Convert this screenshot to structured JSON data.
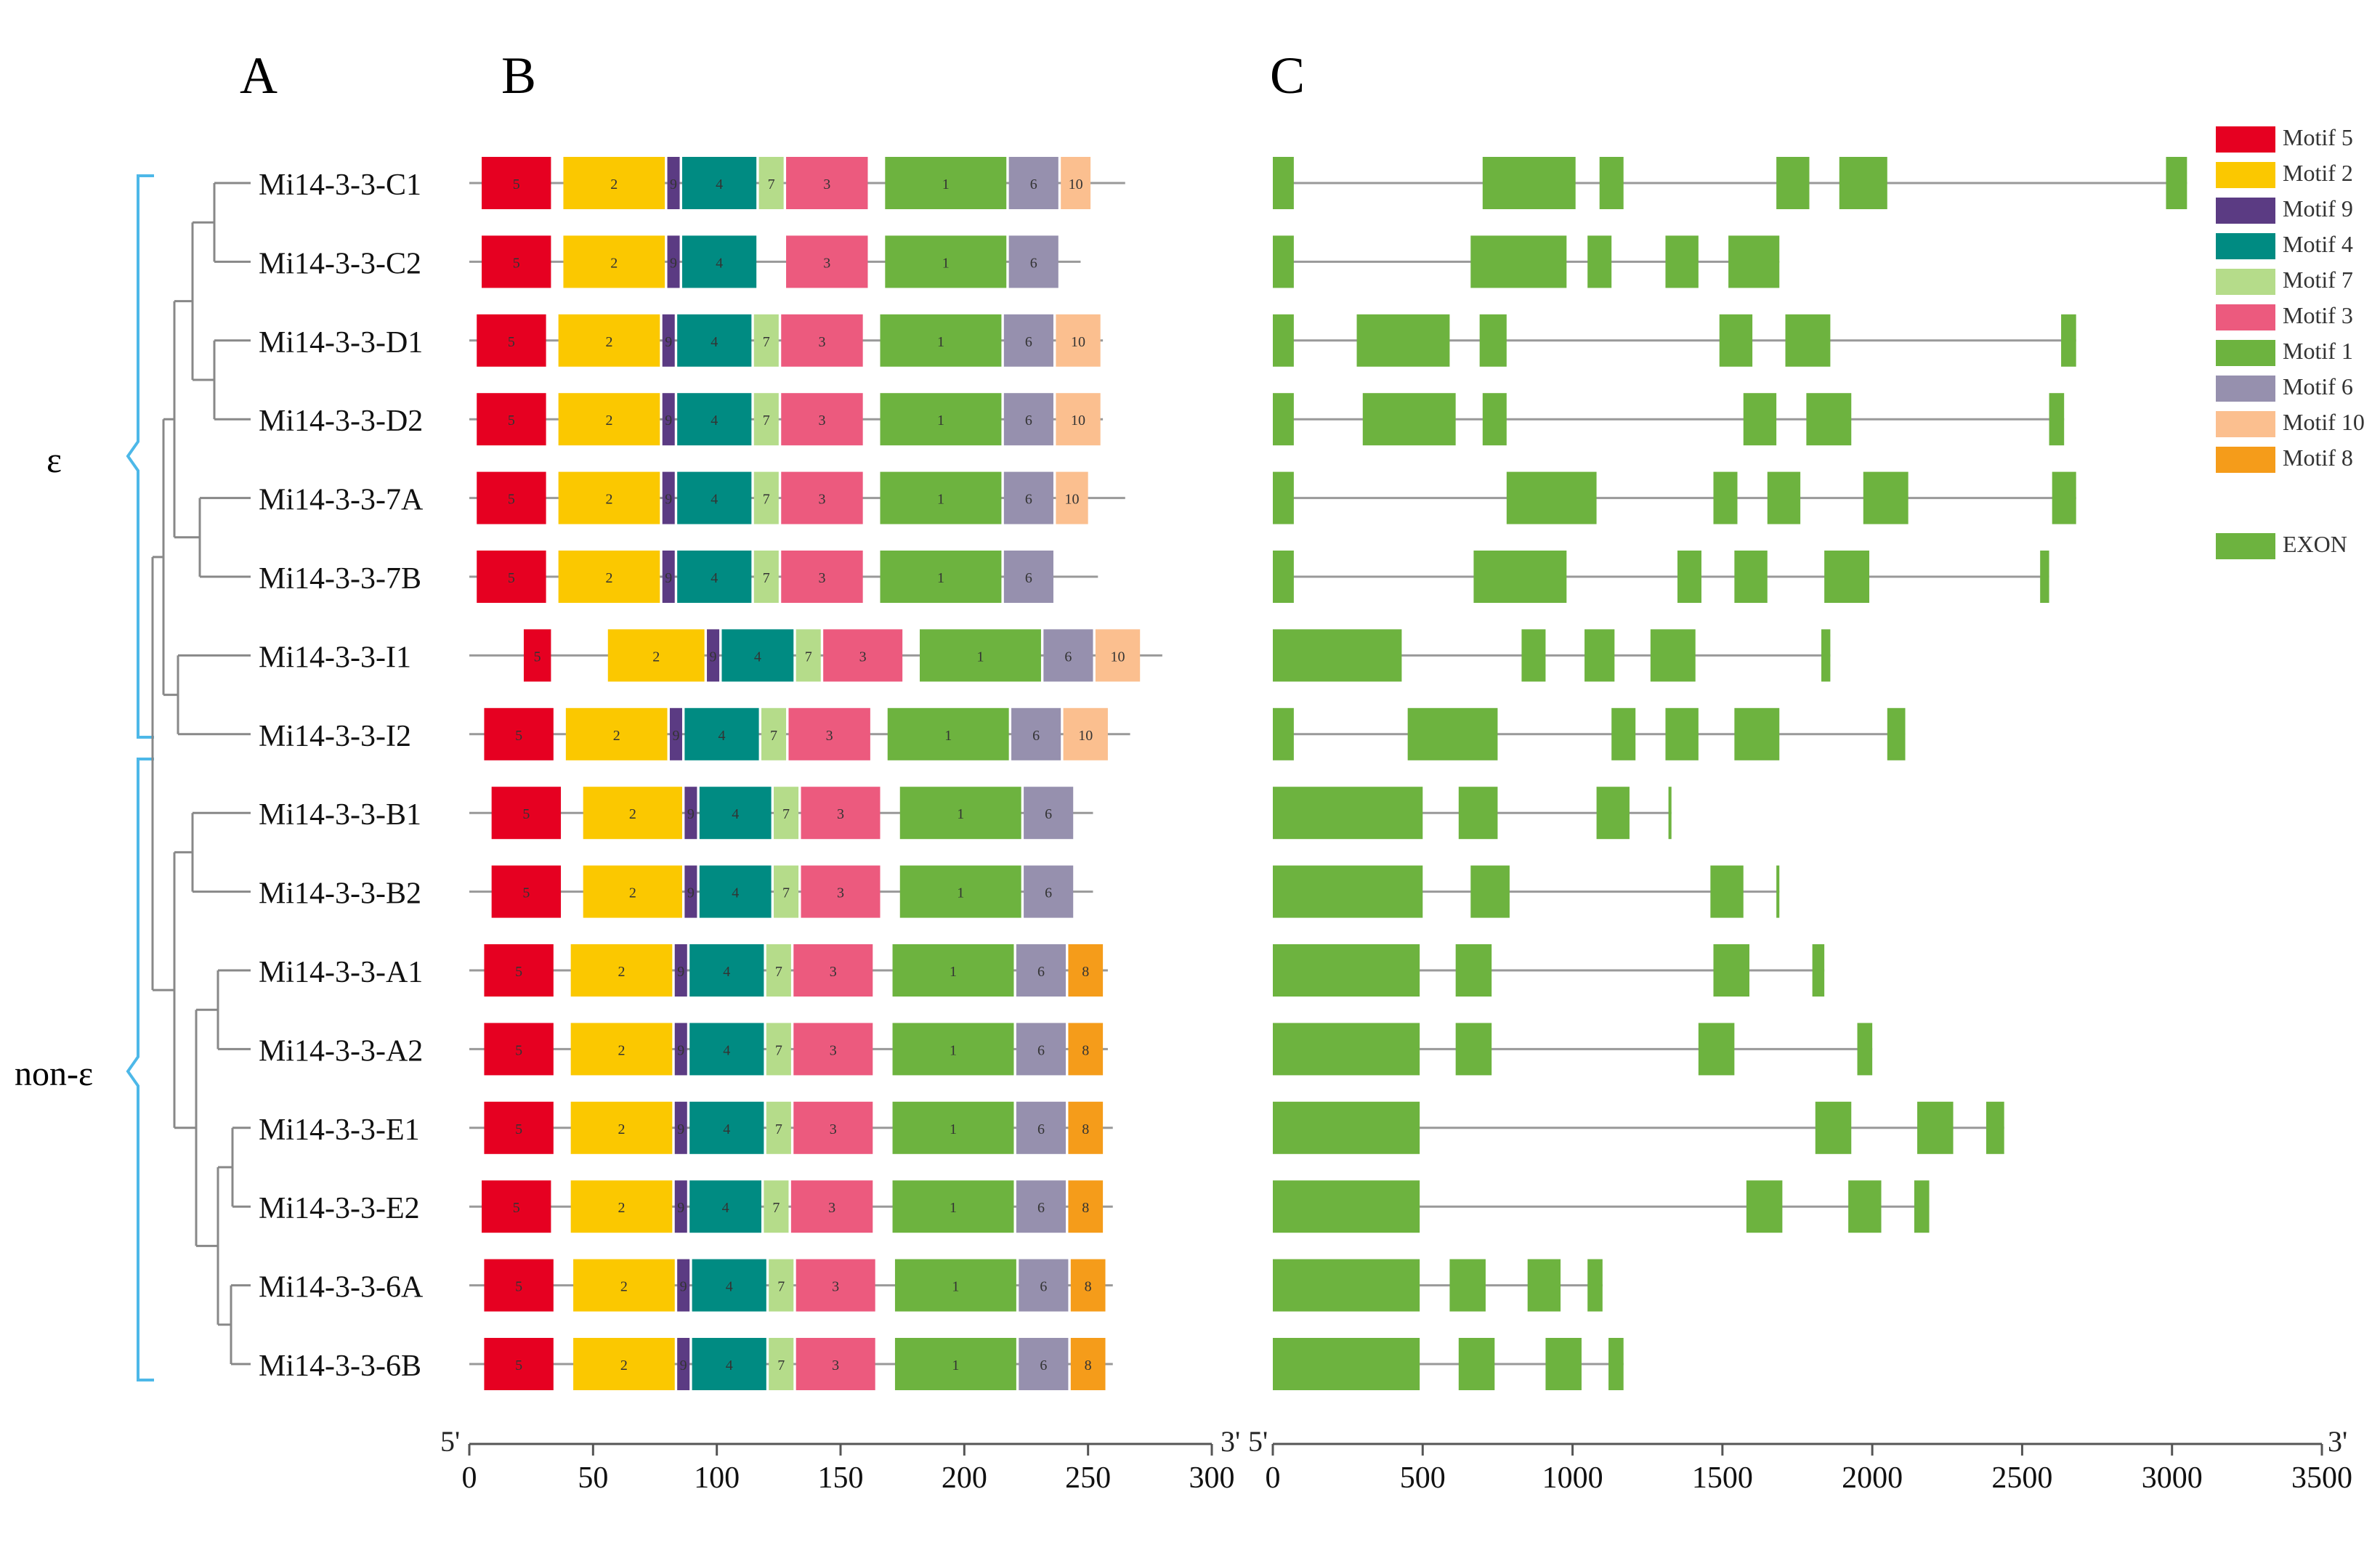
{
  "panels": {
    "a": "A",
    "b": "B",
    "c": "C"
  },
  "clades": {
    "epsilon": "ε",
    "non_epsilon": "non-ε"
  },
  "genes": [
    {
      "name": "Mi14-3-3-C1",
      "length": 265,
      "motifs": [
        [
          5,
          5,
          33
        ],
        [
          2,
          38,
          79
        ],
        [
          9,
          80,
          85
        ],
        [
          4,
          86,
          116
        ],
        [
          7,
          117,
          127
        ],
        [
          3,
          128,
          161
        ],
        [
          1,
          168,
          217
        ],
        [
          6,
          218,
          238
        ],
        [
          10,
          239,
          251
        ]
      ],
      "gene_length": 3050,
      "exons": [
        [
          0,
          70
        ],
        [
          700,
          1010
        ],
        [
          1090,
          1170
        ],
        [
          1680,
          1790
        ],
        [
          1890,
          2050
        ],
        [
          2980,
          3050
        ]
      ]
    },
    {
      "name": "Mi14-3-3-C2",
      "length": 247,
      "motifs": [
        [
          5,
          5,
          33
        ],
        [
          2,
          38,
          79
        ],
        [
          9,
          80,
          85
        ],
        [
          4,
          86,
          116
        ],
        [
          3,
          128,
          161
        ],
        [
          1,
          168,
          217
        ],
        [
          6,
          218,
          238
        ]
      ],
      "gene_length": 1690,
      "exons": [
        [
          0,
          70
        ],
        [
          660,
          980
        ],
        [
          1050,
          1130
        ],
        [
          1310,
          1420
        ],
        [
          1520,
          1690
        ]
      ]
    },
    {
      "name": "Mi14-3-3-D1",
      "length": 256,
      "motifs": [
        [
          5,
          3,
          31
        ],
        [
          2,
          36,
          77
        ],
        [
          9,
          78,
          83
        ],
        [
          4,
          84,
          114
        ],
        [
          7,
          115,
          125
        ],
        [
          3,
          126,
          159
        ],
        [
          1,
          166,
          215
        ],
        [
          6,
          216,
          236
        ],
        [
          10,
          237,
          255
        ]
      ],
      "gene_length": 2680,
      "exons": [
        [
          0,
          70
        ],
        [
          280,
          590
        ],
        [
          690,
          780
        ],
        [
          1490,
          1600
        ],
        [
          1710,
          1860
        ],
        [
          2630,
          2680
        ]
      ]
    },
    {
      "name": "Mi14-3-3-D2",
      "length": 256,
      "motifs": [
        [
          5,
          3,
          31
        ],
        [
          2,
          36,
          77
        ],
        [
          9,
          78,
          83
        ],
        [
          4,
          84,
          114
        ],
        [
          7,
          115,
          125
        ],
        [
          3,
          126,
          159
        ],
        [
          1,
          166,
          215
        ],
        [
          6,
          216,
          236
        ],
        [
          10,
          237,
          255
        ]
      ],
      "gene_length": 2640,
      "exons": [
        [
          0,
          70
        ],
        [
          300,
          610
        ],
        [
          700,
          780
        ],
        [
          1570,
          1680
        ],
        [
          1780,
          1930
        ],
        [
          2590,
          2640
        ]
      ]
    },
    {
      "name": "Mi14-3-3-7A",
      "length": 265,
      "motifs": [
        [
          5,
          3,
          31
        ],
        [
          2,
          36,
          77
        ],
        [
          9,
          78,
          83
        ],
        [
          4,
          84,
          114
        ],
        [
          7,
          115,
          125
        ],
        [
          3,
          126,
          159
        ],
        [
          1,
          166,
          215
        ],
        [
          6,
          216,
          236
        ],
        [
          10,
          237,
          250
        ]
      ],
      "gene_length": 2680,
      "exons": [
        [
          0,
          70
        ],
        [
          780,
          1080
        ],
        [
          1470,
          1550
        ],
        [
          1650,
          1760
        ],
        [
          1970,
          2120
        ],
        [
          2600,
          2680
        ]
      ]
    },
    {
      "name": "Mi14-3-3-7B",
      "length": 254,
      "motifs": [
        [
          5,
          3,
          31
        ],
        [
          2,
          36,
          77
        ],
        [
          9,
          78,
          83
        ],
        [
          4,
          84,
          114
        ],
        [
          7,
          115,
          125
        ],
        [
          3,
          126,
          159
        ],
        [
          1,
          166,
          215
        ],
        [
          6,
          216,
          236
        ]
      ],
      "gene_length": 2590,
      "exons": [
        [
          0,
          70
        ],
        [
          670,
          980
        ],
        [
          1350,
          1430
        ],
        [
          1540,
          1650
        ],
        [
          1840,
          1990
        ],
        [
          2560,
          2590
        ]
      ]
    },
    {
      "name": "Mi14-3-3-I1",
      "length": 280,
      "motifs": [
        [
          5,
          22,
          33
        ],
        [
          2,
          56,
          95
        ],
        [
          9,
          96,
          101
        ],
        [
          4,
          102,
          131
        ],
        [
          7,
          132,
          142
        ],
        [
          3,
          143,
          175
        ],
        [
          1,
          182,
          231
        ],
        [
          6,
          232,
          252
        ],
        [
          10,
          253,
          271
        ]
      ],
      "gene_length": 1860,
      "exons": [
        [
          0,
          430
        ],
        [
          830,
          910
        ],
        [
          1040,
          1140
        ],
        [
          1260,
          1410
        ],
        [
          1830,
          1860
        ]
      ]
    },
    {
      "name": "Mi14-3-3-I2",
      "length": 267,
      "motifs": [
        [
          5,
          6,
          34
        ],
        [
          2,
          39,
          80
        ],
        [
          9,
          81,
          86
        ],
        [
          4,
          87,
          117
        ],
        [
          7,
          118,
          128
        ],
        [
          3,
          129,
          162
        ],
        [
          1,
          169,
          218
        ],
        [
          6,
          219,
          239
        ],
        [
          10,
          240,
          258
        ]
      ],
      "gene_length": 2110,
      "exons": [
        [
          0,
          70
        ],
        [
          450,
          750
        ],
        [
          1130,
          1210
        ],
        [
          1310,
          1420
        ],
        [
          1540,
          1690
        ],
        [
          2050,
          2110
        ]
      ]
    },
    {
      "name": "Mi14-3-3-B1",
      "length": 252,
      "motifs": [
        [
          5,
          9,
          37
        ],
        [
          2,
          46,
          86
        ],
        [
          9,
          87,
          92
        ],
        [
          4,
          93,
          122
        ],
        [
          7,
          123,
          133
        ],
        [
          3,
          134,
          166
        ],
        [
          1,
          174,
          223
        ],
        [
          6,
          224,
          244
        ]
      ],
      "gene_length": 1330,
      "exons": [
        [
          0,
          500
        ],
        [
          620,
          750
        ],
        [
          1080,
          1190
        ],
        [
          1320,
          1330
        ]
      ]
    },
    {
      "name": "Mi14-3-3-B2",
      "length": 252,
      "motifs": [
        [
          5,
          9,
          37
        ],
        [
          2,
          46,
          86
        ],
        [
          9,
          87,
          92
        ],
        [
          4,
          93,
          122
        ],
        [
          7,
          123,
          133
        ],
        [
          3,
          134,
          166
        ],
        [
          1,
          174,
          223
        ],
        [
          6,
          224,
          244
        ]
      ],
      "gene_length": 1690,
      "exons": [
        [
          0,
          500
        ],
        [
          660,
          790
        ],
        [
          1460,
          1570
        ],
        [
          1680,
          1690
        ]
      ]
    },
    {
      "name": "Mi14-3-3-A1",
      "length": 258,
      "motifs": [
        [
          5,
          6,
          34
        ],
        [
          2,
          41,
          82
        ],
        [
          9,
          83,
          88
        ],
        [
          4,
          89,
          119
        ],
        [
          7,
          120,
          130
        ],
        [
          3,
          131,
          163
        ],
        [
          1,
          171,
          220
        ],
        [
          6,
          221,
          241
        ],
        [
          8,
          242,
          256
        ]
      ],
      "gene_length": 1840,
      "exons": [
        [
          0,
          490
        ],
        [
          610,
          730
        ],
        [
          1470,
          1590
        ],
        [
          1800,
          1840
        ]
      ]
    },
    {
      "name": "Mi14-3-3-A2",
      "length": 258,
      "motifs": [
        [
          5,
          6,
          34
        ],
        [
          2,
          41,
          82
        ],
        [
          9,
          83,
          88
        ],
        [
          4,
          89,
          119
        ],
        [
          7,
          120,
          130
        ],
        [
          3,
          131,
          163
        ],
        [
          1,
          171,
          220
        ],
        [
          6,
          221,
          241
        ],
        [
          8,
          242,
          256
        ]
      ],
      "gene_length": 2000,
      "exons": [
        [
          0,
          490
        ],
        [
          610,
          730
        ],
        [
          1420,
          1540
        ],
        [
          1950,
          2000
        ]
      ]
    },
    {
      "name": "Mi14-3-3-E1",
      "length": 260,
      "motifs": [
        [
          5,
          6,
          34
        ],
        [
          2,
          41,
          82
        ],
        [
          9,
          83,
          88
        ],
        [
          4,
          89,
          119
        ],
        [
          7,
          120,
          130
        ],
        [
          3,
          131,
          163
        ],
        [
          1,
          171,
          220
        ],
        [
          6,
          221,
          241
        ],
        [
          8,
          242,
          256
        ]
      ],
      "gene_length": 2440,
      "exons": [
        [
          0,
          490
        ],
        [
          1810,
          1930
        ],
        [
          2150,
          2270
        ],
        [
          2380,
          2440
        ]
      ]
    },
    {
      "name": "Mi14-3-3-E2",
      "length": 260,
      "motifs": [
        [
          5,
          5,
          33
        ],
        [
          2,
          41,
          82
        ],
        [
          9,
          83,
          88
        ],
        [
          4,
          89,
          118
        ],
        [
          7,
          119,
          129
        ],
        [
          3,
          130,
          163
        ],
        [
          1,
          171,
          220
        ],
        [
          6,
          221,
          241
        ],
        [
          8,
          242,
          256
        ]
      ],
      "gene_length": 2190,
      "exons": [
        [
          0,
          490
        ],
        [
          1580,
          1700
        ],
        [
          1920,
          2030
        ],
        [
          2140,
          2190
        ]
      ]
    },
    {
      "name": "Mi14-3-3-6A",
      "length": 260,
      "motifs": [
        [
          5,
          6,
          34
        ],
        [
          2,
          42,
          83
        ],
        [
          9,
          84,
          89
        ],
        [
          4,
          90,
          120
        ],
        [
          7,
          121,
          131
        ],
        [
          3,
          132,
          164
        ],
        [
          1,
          172,
          221
        ],
        [
          6,
          222,
          242
        ],
        [
          8,
          243,
          257
        ]
      ],
      "gene_length": 1100,
      "exons": [
        [
          0,
          490
        ],
        [
          590,
          710
        ],
        [
          850,
          960
        ],
        [
          1050,
          1100
        ]
      ]
    },
    {
      "name": "Mi14-3-3-6B",
      "length": 260,
      "motifs": [
        [
          5,
          6,
          34
        ],
        [
          2,
          42,
          83
        ],
        [
          9,
          84,
          89
        ],
        [
          4,
          90,
          120
        ],
        [
          7,
          121,
          131
        ],
        [
          3,
          132,
          164
        ],
        [
          1,
          172,
          221
        ],
        [
          6,
          222,
          242
        ],
        [
          8,
          243,
          257
        ]
      ],
      "gene_length": 1170,
      "exons": [
        [
          0,
          490
        ],
        [
          620,
          740
        ],
        [
          910,
          1030
        ],
        [
          1120,
          1170
        ]
      ]
    }
  ],
  "legend": [
    {
      "label": "Motif 5",
      "motif": 5
    },
    {
      "label": "Motif 2",
      "motif": 2
    },
    {
      "label": "Motif 9",
      "motif": 9
    },
    {
      "label": "Motif 4",
      "motif": 4
    },
    {
      "label": "Motif 7",
      "motif": 7
    },
    {
      "label": "Motif 3",
      "motif": 3
    },
    {
      "label": "Motif 1",
      "motif": 1
    },
    {
      "label": "Motif 6",
      "motif": 6
    },
    {
      "label": "Motif 10",
      "motif": 10
    },
    {
      "label": "Motif 8",
      "motif": 8
    }
  ],
  "exon_legend": "EXON",
  "motif_colors": {
    "1": "#6db33f",
    "2": "#fbc800",
    "3": "#ec5a7e",
    "4": "#008b82",
    "5": "#e60021",
    "6": "#9690ae",
    "7": "#b5dc8a",
    "8": "#f59c1a",
    "9": "#5b3b83",
    "10": "#fbbf8f"
  },
  "exon_color": "#6db33f",
  "line_color": "#999999",
  "tree_color": "#888888",
  "bracket_color": "#4db8e8",
  "axis_b": {
    "start_label": "5'",
    "end_label": "3'",
    "ticks": [
      0,
      50,
      100,
      150,
      200,
      250,
      300
    ],
    "range": [
      0,
      300
    ]
  },
  "axis_c": {
    "start_label": "5'",
    "end_label": "3'",
    "ticks": [
      0,
      500,
      1000,
      1500,
      2000,
      2500,
      3000,
      3500
    ],
    "range": [
      0,
      3500
    ]
  }
}
